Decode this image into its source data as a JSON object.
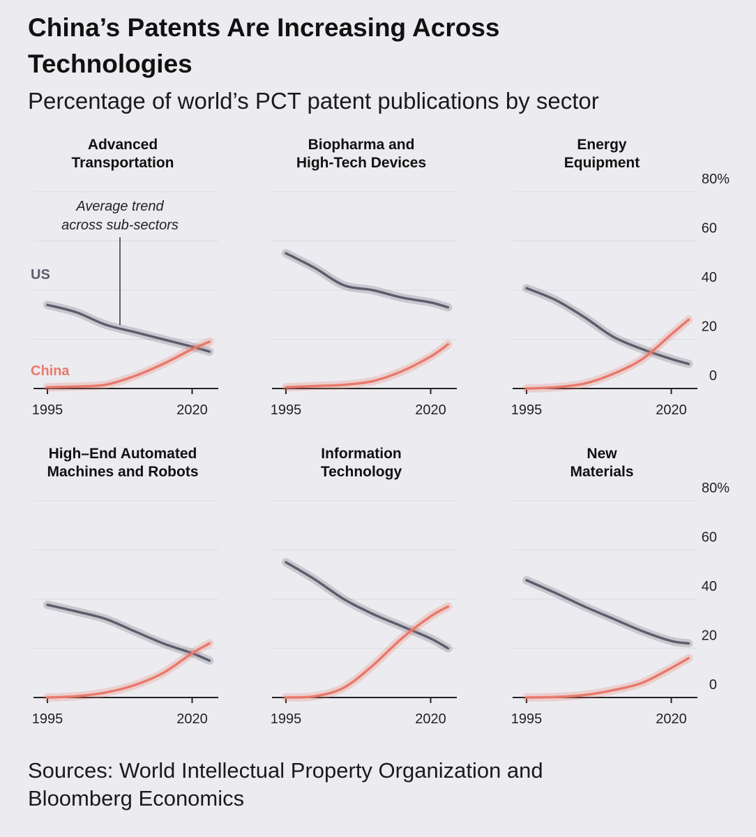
{
  "title_lines": [
    "China’s Patents Are Increasing Across",
    "Technologies"
  ],
  "subtitle": "Percentage of world’s PCT patent publications by sector",
  "source_lines": [
    "Sources: World Intellectual Property Organization and",
    "Bloomberg Economics"
  ],
  "annotation_lines": [
    "Average trend",
    "across sub-sectors"
  ],
  "colors": {
    "us": "#5d5c6c",
    "china": "#e8796a",
    "background": "#ececf0"
  },
  "chart_data": {
    "type": "line",
    "x_years": [
      1995,
      2000,
      2005,
      2010,
      2015,
      2020,
      2023
    ],
    "xticks": [
      "1995",
      "2020"
    ],
    "yticks": [
      "0",
      "20",
      "40",
      "60",
      "80%"
    ],
    "ylim": [
      0,
      80
    ],
    "grid": true,
    "series_labels": {
      "us": "US",
      "china": "China"
    },
    "panels": [
      {
        "title": [
          "Advanced",
          "Transportation"
        ],
        "us": [
          34,
          31,
          26,
          23,
          20,
          17,
          15
        ],
        "china": [
          0.5,
          0.8,
          1.5,
          5,
          10,
          16,
          19
        ]
      },
      {
        "title": [
          "Biopharma and",
          "High-Tech Devices"
        ],
        "us": [
          55,
          49,
          42,
          40,
          37,
          35,
          33
        ],
        "china": [
          0.5,
          1,
          1.5,
          3,
          7,
          13,
          18
        ]
      },
      {
        "title": [
          "Energy",
          "Equipment"
        ],
        "us": [
          40.8,
          36,
          29,
          21,
          16,
          12,
          10
        ],
        "china": [
          0,
          0.5,
          2,
          6,
          12,
          22,
          28
        ]
      },
      {
        "title": [
          "High–End Automated",
          "Machines and Robots"
        ],
        "us": [
          37.7,
          35,
          32,
          27,
          22,
          18,
          15
        ],
        "china": [
          0,
          0.5,
          2,
          5,
          10,
          18,
          22
        ]
      },
      {
        "title": [
          "Information",
          "Technology"
        ],
        "us": [
          55,
          48,
          40,
          34,
          29,
          24,
          20
        ],
        "china": [
          0,
          0.5,
          4,
          13,
          24,
          33,
          37
        ]
      },
      {
        "title": [
          "New",
          "Materials"
        ],
        "us": [
          47.7,
          42.5,
          37,
          32,
          27,
          23,
          22
        ],
        "china": [
          0,
          0.2,
          1,
          3,
          6,
          12,
          16
        ]
      }
    ]
  }
}
